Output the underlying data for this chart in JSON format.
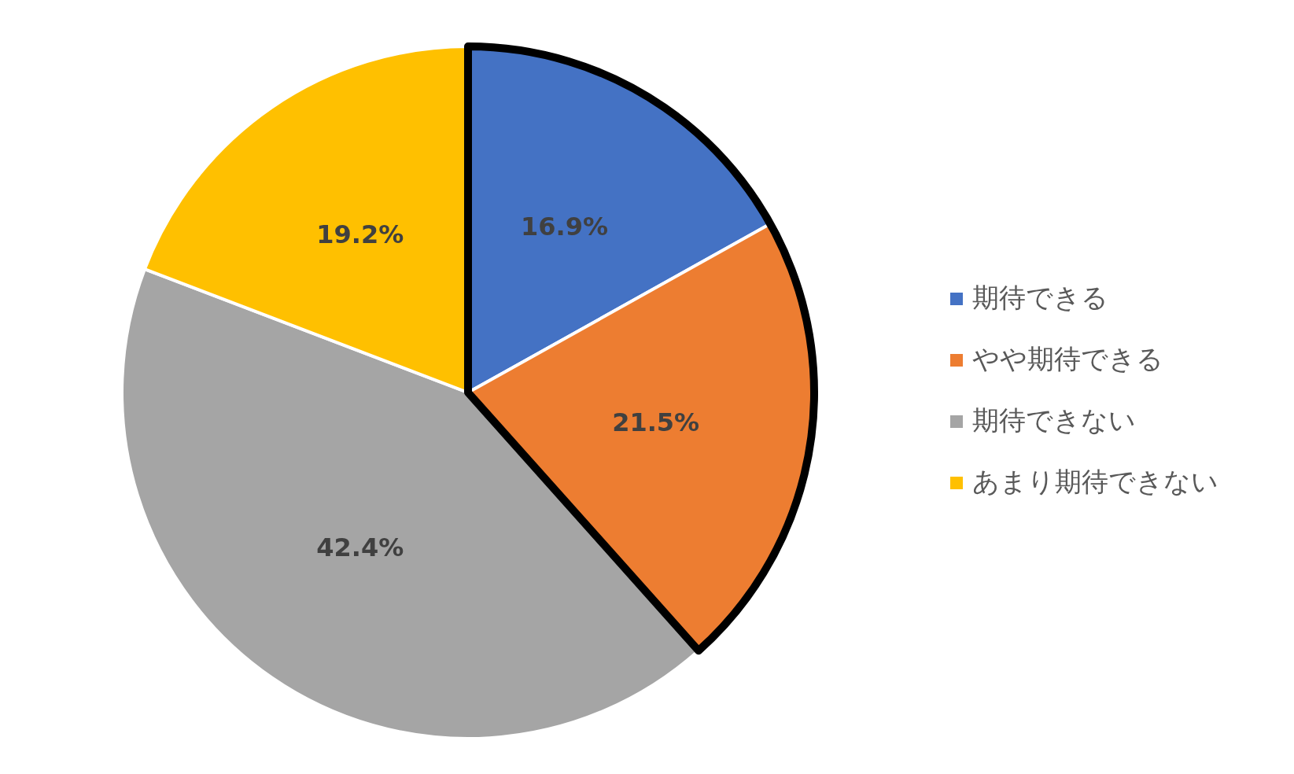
{
  "chart_data": {
    "type": "pie",
    "categories": [
      "期待できる",
      "やや期待できる",
      "期待できない",
      "あまり期待できない"
    ],
    "values": [
      16.9,
      21.5,
      42.4,
      19.2
    ],
    "colors": [
      "#4472c4",
      "#ed7d31",
      "#a5a5a5",
      "#ffc000"
    ],
    "value_labels": [
      "16.9%",
      "21.5%",
      "42.4%",
      "19.2%"
    ],
    "legend": "right"
  }
}
